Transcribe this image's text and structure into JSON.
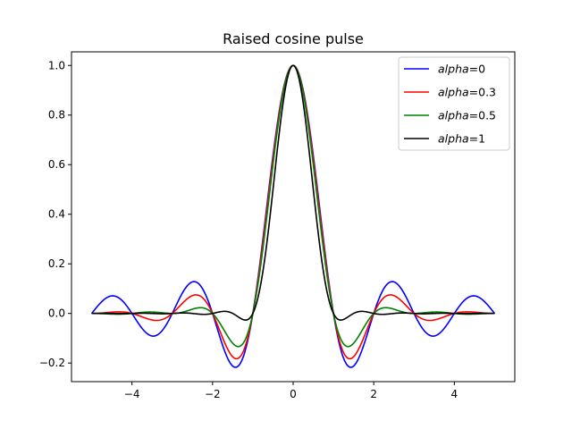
{
  "chart_data": {
    "type": "line",
    "title": "Raised cosine pulse",
    "xlabel": "",
    "ylabel": "",
    "xlim": [
      -5.5,
      5.5
    ],
    "ylim": [
      -0.275,
      1.055
    ],
    "x_range": [
      -5,
      5
    ],
    "xticks": [
      -4,
      -2,
      0,
      2,
      4
    ],
    "xtick_labels": [
      "−4",
      "−2",
      "0",
      "2",
      "4"
    ],
    "yticks": [
      -0.2,
      0.0,
      0.2,
      0.4,
      0.6,
      0.8,
      1.0
    ],
    "ytick_labels": [
      "−0.2",
      "0.0",
      "0.2",
      "0.4",
      "0.6",
      "0.8",
      "1.0"
    ],
    "grid": false,
    "legend_position": "top-right",
    "series": [
      {
        "name": "alpha=0",
        "legend_var": "alpha",
        "legend_value": "=0",
        "alpha": 0,
        "color": "#0000ff"
      },
      {
        "name": "alpha=0.3",
        "legend_var": "alpha",
        "legend_value": "=0.3",
        "alpha": 0.3,
        "color": "#ff0000"
      },
      {
        "name": "alpha=0.5",
        "legend_var": "alpha",
        "legend_value": "=0.5",
        "alpha": 0.5,
        "color": "#008000"
      },
      {
        "name": "alpha=1",
        "legend_var": "alpha",
        "legend_value": "=1",
        "alpha": 1,
        "color": "#000000"
      }
    ]
  }
}
